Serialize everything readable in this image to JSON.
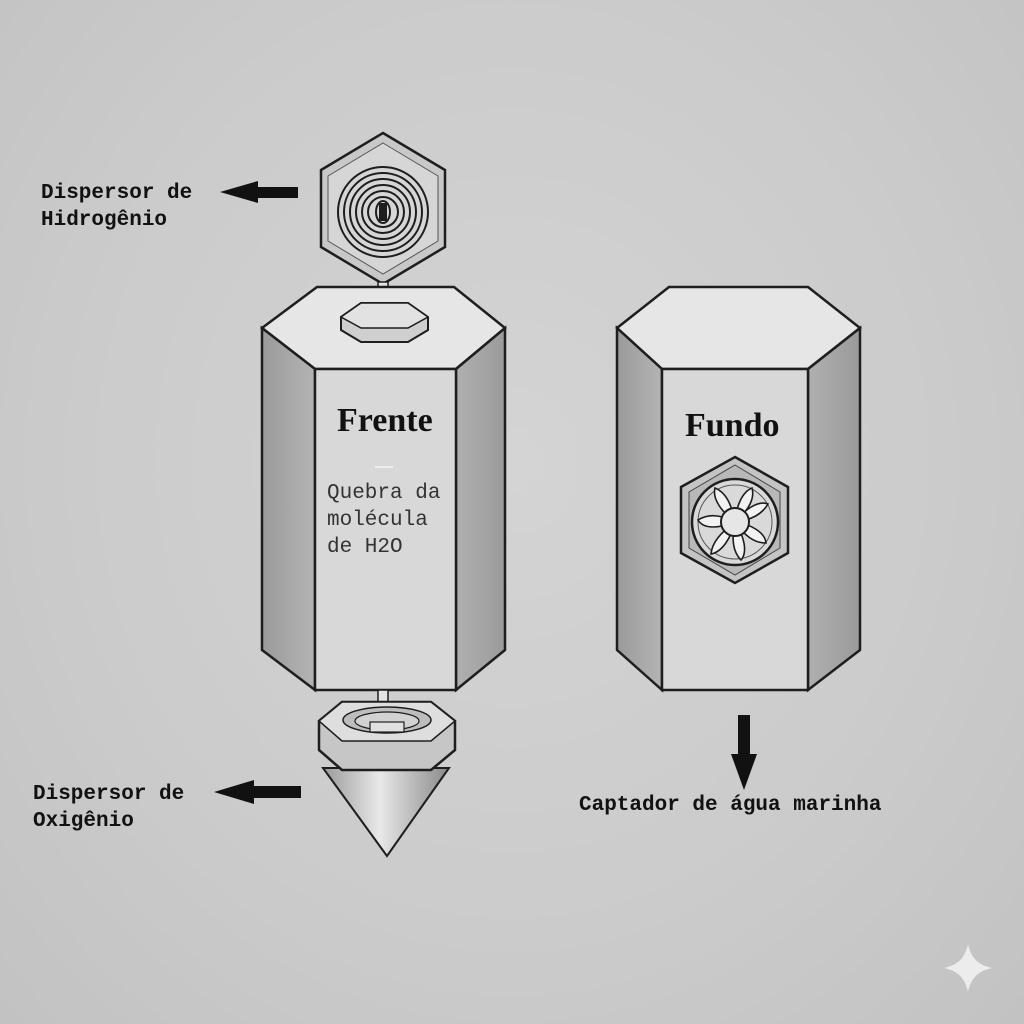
{
  "labels": {
    "hydrogen_dispenser": "Dispersor de\nHidrogênio",
    "oxygen_dispenser": "Dispersor de\nOxigênio",
    "seawater_collector": "Captador de água marinha",
    "front_title": "Frente",
    "front_description": "Quebra da\nmolécula\nde H2O",
    "back_title": "Fundo"
  },
  "icons": {
    "hydrogen_dispenser": "spiral-coil-icon",
    "oxygen_dispenser": "cone-nozzle-icon",
    "intake": "fan-icon",
    "watermark": "sparkle-icon"
  },
  "colors": {
    "background": "#cbcbcb",
    "face_front": "#d8d8d8",
    "face_side": "#a6a6a6",
    "face_top": "#e6e6e6",
    "outline": "#1e1e1e"
  }
}
